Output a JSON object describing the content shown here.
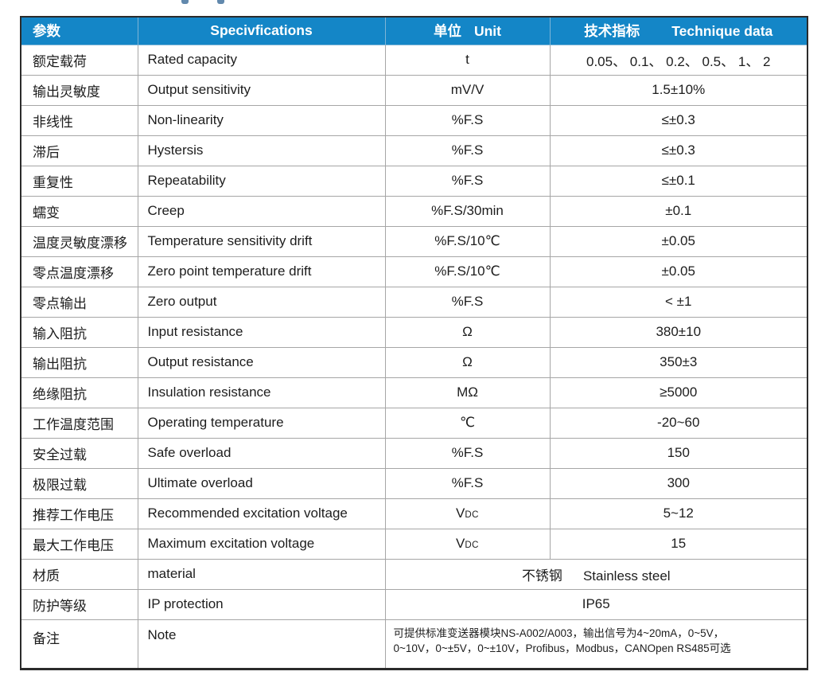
{
  "colors": {
    "header_bg": "#1486c7",
    "header_text": "#ffffff",
    "grid_line": "#a6a6a6",
    "outer_border": "#2b2b2b",
    "body_text": "#1d1d1d"
  },
  "table": {
    "header": {
      "param": "参数",
      "spec": "Specivfications",
      "unit_zh": "单位",
      "unit_en": "Unit",
      "data_zh": "技术指标",
      "data_en": "Technique data"
    },
    "rows": [
      {
        "param": "额定载荷",
        "spec": "Rated capacity",
        "unit": "t",
        "value": "0.05、 0.1、 0.2、 0.5、 1、 2"
      },
      {
        "param": "输出灵敏度",
        "spec": "Output sensitivity",
        "unit": "mV/V",
        "value": "1.5±10%"
      },
      {
        "param": "非线性",
        "spec": "Non-linearity",
        "unit": "%F.S",
        "value": "≤±0.3"
      },
      {
        "param": "滞后",
        "spec": "Hystersis",
        "unit": "%F.S",
        "value": "≤±0.3"
      },
      {
        "param": "重复性",
        "spec": "Repeatability",
        "unit": "%F.S",
        "value": "≤±0.1"
      },
      {
        "param": "蠕变",
        "spec": "Creep",
        "unit": "%F.S/30min",
        "value": "±0.1"
      },
      {
        "param": "温度灵敏度漂移",
        "spec": "Temperature sensitivity drift",
        "unit": "%F.S/10℃",
        "value": "±0.05"
      },
      {
        "param": "零点温度漂移",
        "spec": "Zero point temperature drift",
        "unit": "%F.S/10℃",
        "value": "±0.05"
      },
      {
        "param": "零点输出",
        "spec": "Zero output",
        "unit": "%F.S",
        "value": "< ±1"
      },
      {
        "param": "输入阻抗",
        "spec": "Input resistance",
        "unit": "Ω",
        "value": "380±10"
      },
      {
        "param": "输出阻抗",
        "spec": "Output resistance",
        "unit": "Ω",
        "value": "350±3"
      },
      {
        "param": "绝缘阻抗",
        "spec": "Insulation resistance",
        "unit": "MΩ",
        "value": "≥5000"
      },
      {
        "param": "工作温度范围",
        "spec": "Operating temperature",
        "unit": "℃",
        "value": "-20~60"
      },
      {
        "param": "安全过载",
        "spec": "Safe overload",
        "unit": "%F.S",
        "value": "150"
      },
      {
        "param": "极限过载",
        "spec": "Ultimate overload",
        "unit": "%F.S",
        "value": "300"
      },
      {
        "param": "推荐工作电压",
        "spec": "Recommended excitation voltage",
        "unit_main": "V",
        "unit_sub": "DC",
        "value": "5~12"
      },
      {
        "param": "最大工作电压",
        "spec": "Maximum excitation voltage",
        "unit_main": "V",
        "unit_sub": "DC",
        "value": "15"
      }
    ],
    "material_row": {
      "param": "材质",
      "spec": "material",
      "value_zh": "不锈钢",
      "value_en": "Stainless steel"
    },
    "ip_row": {
      "param": "防护等级",
      "spec": "IP protection",
      "value": "IP65"
    },
    "note_row": {
      "param": "备注",
      "spec": "Note",
      "line1": "可提供标准变送器模块NS-A002/A003，输出信号为4~20mA，0~5V，",
      "line2": "0~10V，0~±5V，0~±10V，Profibus，Modbus，CANOpen RS485可选"
    }
  }
}
